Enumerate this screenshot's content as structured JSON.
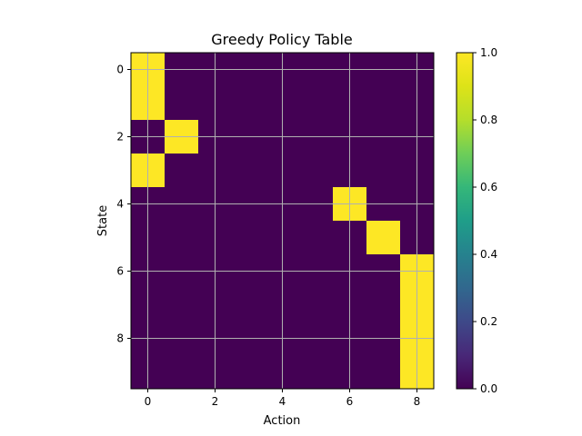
{
  "chart_data": {
    "type": "heatmap",
    "title": "Greedy Policy Table",
    "xlabel": "Action",
    "ylabel": "State",
    "n_states": 10,
    "n_actions": 9,
    "x_ticks": [
      0,
      2,
      4,
      6,
      8
    ],
    "y_ticks": [
      0,
      2,
      4,
      6,
      8
    ],
    "grid": true,
    "values": [
      [
        1,
        0,
        0,
        0,
        0,
        0,
        0,
        0,
        0
      ],
      [
        1,
        0,
        0,
        0,
        0,
        0,
        0,
        0,
        0
      ],
      [
        0,
        1,
        0,
        0,
        0,
        0,
        0,
        0,
        0
      ],
      [
        1,
        0,
        0,
        0,
        0,
        0,
        0,
        0,
        0
      ],
      [
        0,
        0,
        0,
        0,
        0,
        0,
        1,
        0,
        0
      ],
      [
        0,
        0,
        0,
        0,
        0,
        0,
        0,
        1,
        0
      ],
      [
        0,
        0,
        0,
        0,
        0,
        0,
        0,
        0,
        1
      ],
      [
        0,
        0,
        0,
        0,
        0,
        0,
        0,
        0,
        1
      ],
      [
        0,
        0,
        0,
        0,
        0,
        0,
        0,
        0,
        1
      ],
      [
        0,
        0,
        0,
        0,
        0,
        0,
        0,
        0,
        1
      ]
    ],
    "colormap": "viridis",
    "vmin": 0.0,
    "vmax": 1.0,
    "low_color": "#440154",
    "high_color": "#fde725",
    "colorbar": {
      "ticks": [
        0.0,
        0.2,
        0.4,
        0.6,
        0.8,
        1.0
      ],
      "tick_labels": [
        "0.0",
        "0.2",
        "0.4",
        "0.6",
        "0.8",
        "1.0"
      ]
    }
  }
}
